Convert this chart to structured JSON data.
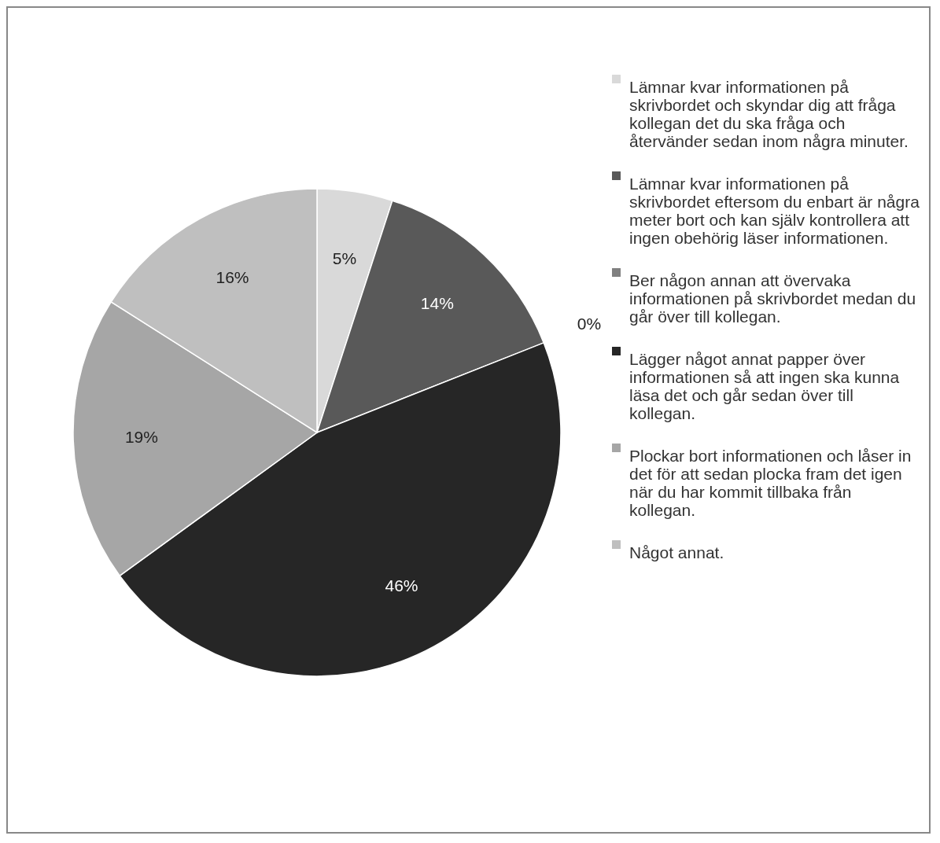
{
  "chart_data": {
    "type": "pie",
    "categories": [
      "Lämnar kvar informationen på skrivbordet och skyndar dig att fråga kollegan det du ska fråga och återvänder sedan inom några minuter.",
      "Lämnar kvar informationen på skrivbordet eftersom du enbart är några meter bort och kan själv kontrollera att ingen obehörig läser informationen.",
      "Ber någon annan att övervaka informationen på skrivbordet medan du går över till kollegan.",
      "Lägger något annat papper över informationen så att ingen ska kunna läsa det och går sedan över till kollegan.",
      "Plockar bort informationen och låser in det för att sedan plocka fram det igen när du har kommit tillbaka från kollegan.",
      "Något annat."
    ],
    "values": [
      5,
      14,
      0,
      46,
      19,
      16
    ],
    "value_labels": [
      "5%",
      "14%",
      "0%",
      "46%",
      "19%",
      "16%"
    ],
    "colors": [
      "#d9d9d9",
      "#595959",
      "#808080",
      "#262626",
      "#a6a6a6",
      "#bfbfbf"
    ],
    "legend": "right"
  }
}
